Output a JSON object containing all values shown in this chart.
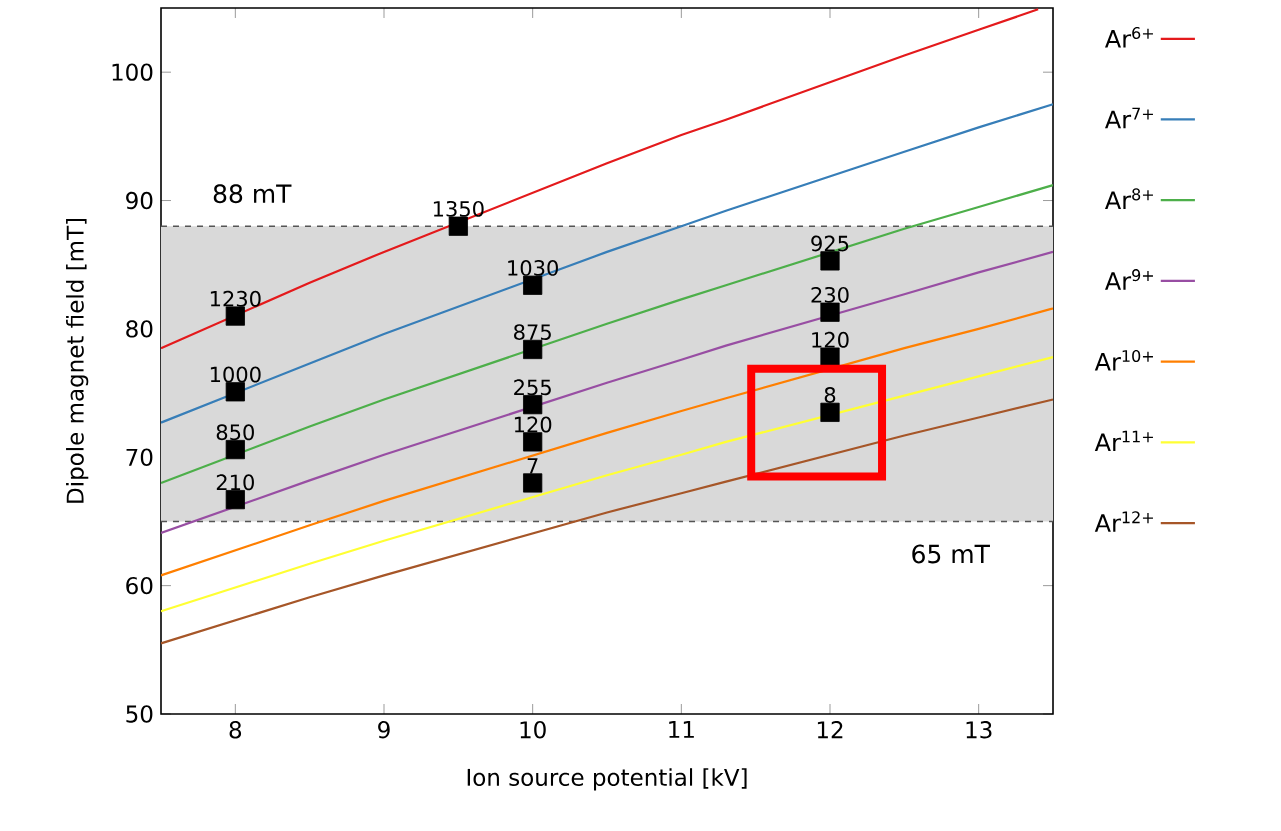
{
  "chart_data": {
    "type": "line",
    "xlabel": "Ion source potential [kV]",
    "ylabel": "Dipole magnet field [mT]",
    "xlim": [
      7.5,
      13.5
    ],
    "ylim": [
      50,
      105
    ],
    "xticks": [
      8,
      9,
      10,
      11,
      12,
      13
    ],
    "yticks": [
      50,
      60,
      70,
      80,
      90,
      100
    ],
    "legend": "right",
    "grid": false,
    "bands": [
      {
        "axis": "y",
        "from": 65,
        "to": 88,
        "color": "#d9d9d9"
      }
    ],
    "ref_lines": [
      {
        "axis": "y",
        "value": 88,
        "label": "88 mT",
        "color": "#555555",
        "line_style": "dashed"
      },
      {
        "axis": "y",
        "value": 65,
        "label": "65 mT",
        "color": "#555555",
        "line_style": "dashed"
      }
    ],
    "series": [
      {
        "name": "Ar$^{6+}$",
        "color": "#e41a1c",
        "x": [
          7.5,
          8.5,
          9,
          10.5,
          11,
          11.3,
          12.5,
          13,
          13.4
        ],
        "values": [
          78.5,
          83.6,
          86.0,
          92.9,
          95.1,
          96.3,
          101.3,
          103.3,
          104.9
        ]
      },
      {
        "name": "Ar$^{7+}$",
        "color": "#377eb8",
        "x": [
          7.5,
          8.5,
          9,
          10.5,
          11,
          11.3,
          12.5,
          13,
          13.5
        ],
        "values": [
          72.7,
          77.3,
          79.6,
          86.0,
          88.0,
          89.2,
          93.8,
          95.7,
          97.5
        ]
      },
      {
        "name": "Ar$^{8+}$",
        "color": "#4daf4a",
        "x": [
          7.5,
          8.5,
          9,
          10.5,
          11,
          11.3,
          12.5,
          13,
          13.5
        ],
        "values": [
          68.0,
          72.4,
          74.5,
          80.4,
          82.3,
          83.4,
          87.8,
          89.5,
          91.2
        ]
      },
      {
        "name": "Ar$^{9+}$",
        "color": "#984ea3",
        "x": [
          7.5,
          8.5,
          9,
          10.5,
          11,
          11.3,
          12.5,
          13,
          13.5
        ],
        "values": [
          64.1,
          68.2,
          70.2,
          75.8,
          77.6,
          78.7,
          82.7,
          84.4,
          86.0
        ]
      },
      {
        "name": "Ar$^{10+}$",
        "color": "#ff7f00",
        "x": [
          7.5,
          8.5,
          9,
          10.5,
          11,
          11.3,
          12.5,
          13,
          13.5
        ],
        "values": [
          60.8,
          64.7,
          66.6,
          71.9,
          73.6,
          74.6,
          78.5,
          80.0,
          81.6
        ]
      },
      {
        "name": "Ar$^{11+}$",
        "color": "#ffff33",
        "x": [
          7.5,
          8.5,
          9,
          10.5,
          11,
          11.3,
          12.5,
          13,
          13.5
        ],
        "values": [
          58.0,
          61.7,
          63.5,
          68.6,
          70.2,
          71.2,
          74.8,
          76.3,
          77.8
        ]
      },
      {
        "name": "Ar$^{12+}$",
        "color": "#a65628",
        "x": [
          7.5,
          8.5,
          9,
          10.5,
          11,
          11.3,
          12.5,
          13,
          13.5
        ],
        "values": [
          55.5,
          59.1,
          60.8,
          65.7,
          67.2,
          68.1,
          71.7,
          73.1,
          74.5
        ]
      },
      {
        "type": "scatter",
        "color": "#000000",
        "marker": "square",
        "x": [
          8,
          8,
          8,
          8,
          9.5,
          10,
          10,
          10,
          10,
          10,
          12,
          12,
          12,
          12
        ],
        "values": [
          81.0,
          75.1,
          70.6,
          66.7,
          88.0,
          83.4,
          78.4,
          74.1,
          71.2,
          68.0,
          85.3,
          81.3,
          77.8,
          73.5
        ]
      }
    ],
    "annotations": [
      {
        "text": "1230",
        "x": 8,
        "y": 81.0
      },
      {
        "text": "1000",
        "x": 8,
        "y": 75.1
      },
      {
        "text": "850",
        "x": 8,
        "y": 70.6
      },
      {
        "text": "210",
        "x": 8,
        "y": 66.7
      },
      {
        "text": "1350",
        "x": 9.5,
        "y": 88.0
      },
      {
        "text": "1030",
        "x": 10,
        "y": 83.4
      },
      {
        "text": "875",
        "x": 10,
        "y": 78.4
      },
      {
        "text": "255",
        "x": 10,
        "y": 74.1
      },
      {
        "text": "120",
        "x": 10,
        "y": 71.2
      },
      {
        "text": "7",
        "x": 10,
        "y": 68.0
      },
      {
        "text": "925",
        "x": 12,
        "y": 85.3
      },
      {
        "text": "230",
        "x": 12,
        "y": 81.3
      },
      {
        "text": "120",
        "x": 12,
        "y": 77.8
      },
      {
        "text": "8",
        "x": 12,
        "y": 73.5
      }
    ]
  }
}
